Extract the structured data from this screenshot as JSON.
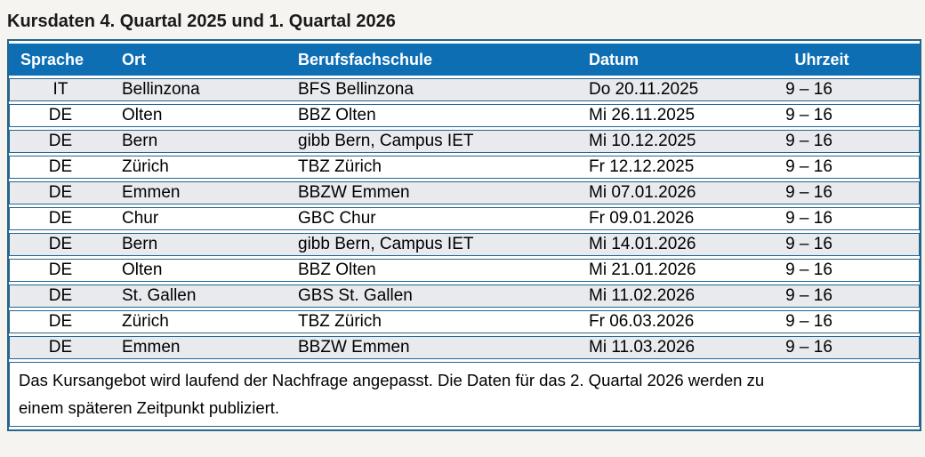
{
  "title": "Kursdaten 4. Quartal 2025 und 1. Quartal 2026",
  "table": {
    "columns": [
      "Sprache",
      "Ort",
      "Berufsfachschule",
      "Datum",
      "Uhrzeit"
    ],
    "column_keys": [
      "sprache",
      "ort",
      "berufsfachschule",
      "datum",
      "uhrzeit"
    ],
    "rows": [
      [
        "IT",
        "Bellinzona",
        "BFS Bellinzona",
        "Do 20.11.2025",
        "9 – 16"
      ],
      [
        "DE",
        "Olten",
        "BBZ Olten",
        "Mi 26.11.2025",
        "9 – 16"
      ],
      [
        "DE",
        "Bern",
        "gibb Bern, Campus IET",
        "Mi 10.12.2025",
        "9 – 16"
      ],
      [
        "DE",
        "Zürich",
        "TBZ Zürich",
        "Fr 12.12.2025",
        "9 – 16"
      ],
      [
        "DE",
        "Emmen",
        "BBZW Emmen",
        "Mi 07.01.2026",
        "9 – 16"
      ],
      [
        "DE",
        "Chur",
        "GBC Chur",
        "Fr 09.01.2026",
        "9 – 16"
      ],
      [
        "DE",
        "Bern",
        "gibb Bern, Campus IET",
        "Mi 14.01.2026",
        "9 – 16"
      ],
      [
        "DE",
        "Olten",
        "BBZ Olten",
        "Mi 21.01.2026",
        "9 – 16"
      ],
      [
        "DE",
        "St. Gallen",
        "GBS St. Gallen",
        "Mi 11.02.2026",
        "9 – 16"
      ],
      [
        "DE",
        "Zürich",
        "TBZ Zürich",
        "Fr 06.03.2026",
        "9 – 16"
      ],
      [
        "DE",
        "Emmen",
        "BBZW Emmen",
        "Mi 11.03.2026",
        "9 – 16"
      ]
    ],
    "footer_note": "Das Kursangebot wird laufend der Nachfrage angepasst. Die Daten für das 2. Quartal 2026 werden zu einem späteren Zeitpunkt publiziert."
  },
  "colors": {
    "page_bg": "#f5f4f1",
    "header_bg": "#0d6eb4",
    "header_text": "#ffffff",
    "row_shaded": "#e8eaee",
    "row_plain": "#ffffff",
    "row_border": "#26658c",
    "outer_border": "#26658c",
    "title_text": "#1a1a1a",
    "body_text": "#000000"
  }
}
